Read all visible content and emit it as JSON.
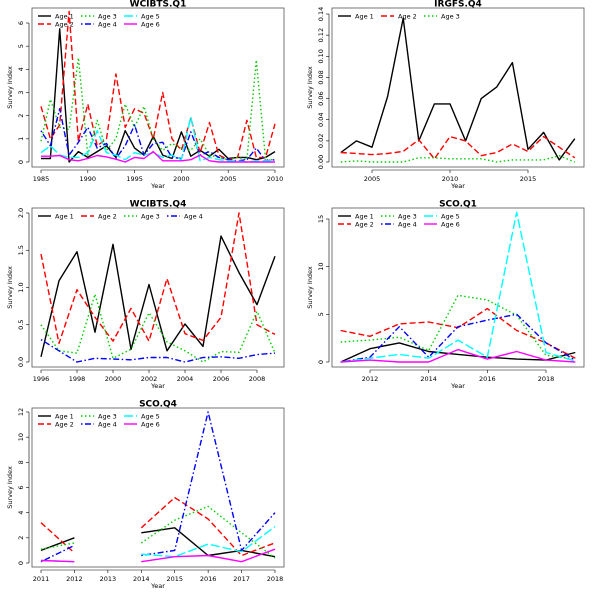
{
  "chart_data": [
    {
      "type": "line",
      "title": "WCIBTS.Q1",
      "xlabel": "Year",
      "ylabel": "Survey Index",
      "xlim": [
        1985,
        2010
      ],
      "ylim": [
        0,
        6.5
      ],
      "xticks": [
        1985,
        1990,
        1995,
        2000,
        2005,
        2010
      ],
      "yticks": [
        0,
        1,
        2,
        3,
        4,
        5,
        6
      ],
      "legend": "top-left",
      "x": [
        1985,
        1986,
        1987,
        1988,
        1989,
        1990,
        1991,
        1992,
        1993,
        1994,
        1995,
        1996,
        1997,
        1998,
        1999,
        2000,
        2001,
        2002,
        2003,
        2004,
        2005,
        2006,
        2007,
        2008,
        2009,
        2010
      ],
      "series": [
        {
          "name": "Age 1",
          "color": "#000000",
          "dash": "solid",
          "values": [
            0.15,
            0.15,
            5.75,
            0.0,
            0.45,
            0.2,
            0.45,
            0.7,
            0.2,
            1.35,
            0.6,
            0.3,
            1.1,
            0.3,
            0.15,
            1.3,
            0.25,
            0.5,
            0.25,
            0.55,
            0.15,
            0.2,
            0.2,
            0.1,
            0.2,
            0.45
          ]
        },
        {
          "name": "Age 2",
          "color": "#ff0000",
          "dash": "dashed",
          "values": [
            2.4,
            1.0,
            1.6,
            6.5,
            0.9,
            2.5,
            0.7,
            1.0,
            3.8,
            1.5,
            2.3,
            2.1,
            1.0,
            3.0,
            1.0,
            0.5,
            1.9,
            0.4,
            1.7,
            0.3,
            0.1,
            0.2,
            1.8,
            0.2,
            0.2,
            1.65
          ]
        },
        {
          "name": "Age 3",
          "color": "#00cc00",
          "dash": "dotted",
          "values": [
            0.9,
            2.7,
            1.5,
            1.4,
            4.5,
            0.3,
            1.8,
            0.5,
            1.0,
            2.5,
            1.5,
            2.4,
            1.0,
            0.5,
            0.8,
            0.6,
            0.5,
            1.0,
            0.3,
            0.2,
            0.1,
            0.2,
            0.1,
            4.4,
            0.1,
            0.1
          ]
        },
        {
          "name": "Age 4",
          "color": "#0000ff",
          "dash": "dotdash",
          "values": [
            1.35,
            0.7,
            2.3,
            0.3,
            0.85,
            1.5,
            0.6,
            0.8,
            0.15,
            0.7,
            1.6,
            0.3,
            0.8,
            0.85,
            0.2,
            0.15,
            1.3,
            0.3,
            0.45,
            0.2,
            0.1,
            0.05,
            0.1,
            0.6,
            0.05,
            0.1
          ]
        },
        {
          "name": "Age 5",
          "color": "#00ffff",
          "dash": "longdash",
          "values": [
            0.4,
            0.7,
            0.3,
            0.2,
            0.2,
            0.4,
            1.35,
            0.4,
            0.3,
            0.1,
            0.4,
            0.3,
            0.4,
            0.2,
            0.3,
            0.1,
            1.95,
            0.05,
            0.2,
            0.1,
            0.05,
            0.05,
            0.0,
            0.05,
            0.05,
            0.05
          ]
        },
        {
          "name": "Age 6",
          "color": "#ff00ff",
          "dash": "solid",
          "values": [
            0.25,
            0.25,
            0.28,
            0.1,
            0.05,
            0.15,
            0.28,
            0.22,
            0.12,
            0.0,
            0.2,
            0.15,
            0.45,
            0.05,
            0.05,
            0.05,
            0.1,
            0.3,
            0.05,
            0.0,
            0.0,
            0.0,
            0.0,
            0.0,
            0.0,
            0.0
          ]
        }
      ]
    },
    {
      "type": "line",
      "title": "IRGFS.Q4",
      "xlabel": "Year",
      "ylabel": "Survey Index",
      "xlim": [
        2003,
        2018
      ],
      "ylim": [
        0,
        0.14
      ],
      "xticks": [
        2005,
        2010,
        2015
      ],
      "yticks": [
        0.0,
        0.02,
        0.04,
        0.06,
        0.08,
        0.1,
        0.12,
        0.14
      ],
      "legend": "top-left",
      "x": [
        2003,
        2004,
        2005,
        2006,
        2007,
        2008,
        2009,
        2010,
        2011,
        2012,
        2013,
        2014,
        2015,
        2016,
        2017,
        2018
      ],
      "series": [
        {
          "name": "Age 1",
          "color": "#000000",
          "dash": "solid",
          "values": [
            0.009,
            0.02,
            0.014,
            0.062,
            0.136,
            0.02,
            0.055,
            0.055,
            0.02,
            0.06,
            0.071,
            0.094,
            0.012,
            0.028,
            0.002,
            0.022
          ]
        },
        {
          "name": "Age 2",
          "color": "#ff0000",
          "dash": "dashed",
          "values": [
            0.009,
            0.008,
            0.007,
            0.008,
            0.01,
            0.021,
            0.003,
            0.024,
            0.02,
            0.006,
            0.009,
            0.017,
            0.01,
            0.024,
            0.014,
            0.004
          ]
        },
        {
          "name": "Age 3",
          "color": "#00cc00",
          "dash": "dotted",
          "values": [
            0.0,
            0.001,
            0.0,
            0.0,
            0.0,
            0.004,
            0.004,
            0.003,
            0.003,
            0.003,
            0.0,
            0.002,
            0.002,
            0.002,
            0.006,
            0.0
          ]
        }
      ]
    },
    {
      "type": "line",
      "title": "WCIBTS.Q4",
      "xlabel": "Year",
      "ylabel": "Survey Index",
      "xlim": [
        1996,
        2009
      ],
      "ylim": [
        0,
        2.0
      ],
      "xticks": [
        1996,
        1998,
        2000,
        2002,
        2004,
        2006,
        2008
      ],
      "yticks": [
        0.0,
        0.5,
        1.0,
        1.5,
        2.0
      ],
      "legend": "top-left",
      "x": [
        1996,
        1997,
        1998,
        1999,
        2000,
        2001,
        2002,
        2003,
        2004,
        2005,
        2006,
        2007,
        2008,
        2009
      ],
      "series": [
        {
          "name": "Age 1",
          "color": "#000000",
          "dash": "solid",
          "values": [
            0.07,
            1.09,
            1.48,
            0.4,
            1.58,
            0.17,
            1.04,
            0.15,
            0.51,
            0.21,
            1.69,
            1.2,
            0.77,
            1.42
          ]
        },
        {
          "name": "Age 2",
          "color": "#ff0000",
          "dash": "dashed",
          "values": [
            1.45,
            0.25,
            0.97,
            0.6,
            0.28,
            0.72,
            0.28,
            1.12,
            0.38,
            0.29,
            0.6,
            2.0,
            0.5,
            0.37
          ]
        },
        {
          "name": "Age 3",
          "color": "#00cc00",
          "dash": "dotted",
          "values": [
            0.5,
            0.15,
            0.12,
            0.91,
            0.05,
            0.17,
            0.66,
            0.27,
            0.15,
            0.0,
            0.14,
            0.13,
            0.68,
            0.12
          ]
        },
        {
          "name": "Age 4",
          "color": "#0000ff",
          "dash": "dotdash",
          "values": [
            0.3,
            0.15,
            0.0,
            0.05,
            0.04,
            0.03,
            0.06,
            0.06,
            0.0,
            0.06,
            0.07,
            0.05,
            0.1,
            0.12
          ]
        }
      ]
    },
    {
      "type": "line",
      "title": "SCO.Q1",
      "xlabel": "Year",
      "ylabel": "Survey Index",
      "xlim": [
        2011,
        2019
      ],
      "ylim": [
        0,
        15.5
      ],
      "xticks": [
        2012,
        2014,
        2016,
        2018
      ],
      "yticks": [
        0,
        5,
        10,
        15
      ],
      "legend": "top-left",
      "x": [
        2011,
        2012,
        2013,
        2014,
        2015,
        2016,
        2017,
        2018,
        2019
      ],
      "series": [
        {
          "name": "Age 1",
          "color": "#000000",
          "dash": "solid",
          "values": [
            0.0,
            1.4,
            2.0,
            1.1,
            0.8,
            0.5,
            0.3,
            0.2,
            1.0
          ]
        },
        {
          "name": "Age 2",
          "color": "#ff0000",
          "dash": "dashed",
          "values": [
            3.3,
            2.7,
            4.0,
            4.2,
            3.6,
            5.6,
            3.3,
            2.0,
            0.4
          ]
        },
        {
          "name": "Age 3",
          "color": "#00cc00",
          "dash": "dotted",
          "values": [
            2.1,
            2.3,
            2.6,
            1.2,
            7.0,
            6.5,
            4.9,
            0.7,
            0.3
          ]
        },
        {
          "name": "Age 4",
          "color": "#0000ff",
          "dash": "dotdash",
          "values": [
            0.0,
            0.5,
            3.7,
            0.5,
            3.7,
            4.4,
            5.0,
            2.0,
            0.2
          ]
        },
        {
          "name": "Age 5",
          "color": "#00ffff",
          "dash": "longdash",
          "values": [
            0.0,
            0.4,
            0.8,
            0.4,
            2.3,
            0.5,
            15.7,
            1.0,
            0.1
          ]
        },
        {
          "name": "Age 6",
          "color": "#ff00ff",
          "dash": "solid",
          "values": [
            0.0,
            0.2,
            0.0,
            0.0,
            1.3,
            0.3,
            1.1,
            0.2,
            0.0
          ]
        }
      ]
    },
    {
      "type": "line",
      "title": "SCO.Q4",
      "xlabel": "Year",
      "ylabel": "Survey Index",
      "xlim": [
        2011,
        2018
      ],
      "ylim": [
        0,
        12
      ],
      "xticks": [
        2011,
        2012,
        2013,
        2014,
        2015,
        2016,
        2017,
        2018
      ],
      "yticks": [
        0,
        2,
        4,
        6,
        8,
        10,
        12
      ],
      "legend": "top-left",
      "x": [
        2011,
        2012,
        2013,
        2014,
        2015,
        2016,
        2017,
        2018
      ],
      "series": [
        {
          "name": "Age 1",
          "color": "#000000",
          "dash": "solid",
          "values": [
            1.0,
            2.0,
            null,
            2.4,
            2.8,
            0.6,
            1.0,
            0.5
          ]
        },
        {
          "name": "Age 2",
          "color": "#ff0000",
          "dash": "dashed",
          "values": [
            3.2,
            0.8,
            null,
            2.8,
            5.2,
            3.5,
            0.6,
            1.6
          ]
        },
        {
          "name": "Age 3",
          "color": "#00cc00",
          "dash": "dotted",
          "values": [
            1.1,
            1.6,
            null,
            1.6,
            3.4,
            4.5,
            2.4,
            0.4
          ]
        },
        {
          "name": "Age 4",
          "color": "#0000ff",
          "dash": "dotdash",
          "values": [
            0.1,
            1.4,
            null,
            0.6,
            1.0,
            12.0,
            1.0,
            4.0
          ]
        },
        {
          "name": "Age 5",
          "color": "#00ffff",
          "dash": "longdash",
          "values": [
            0.2,
            0.1,
            null,
            0.7,
            0.5,
            1.5,
            0.9,
            2.9
          ]
        },
        {
          "name": "Age 6",
          "color": "#ff00ff",
          "dash": "solid",
          "values": [
            0.2,
            0.1,
            null,
            0.1,
            0.5,
            0.6,
            0.1,
            1.1
          ]
        }
      ]
    }
  ]
}
